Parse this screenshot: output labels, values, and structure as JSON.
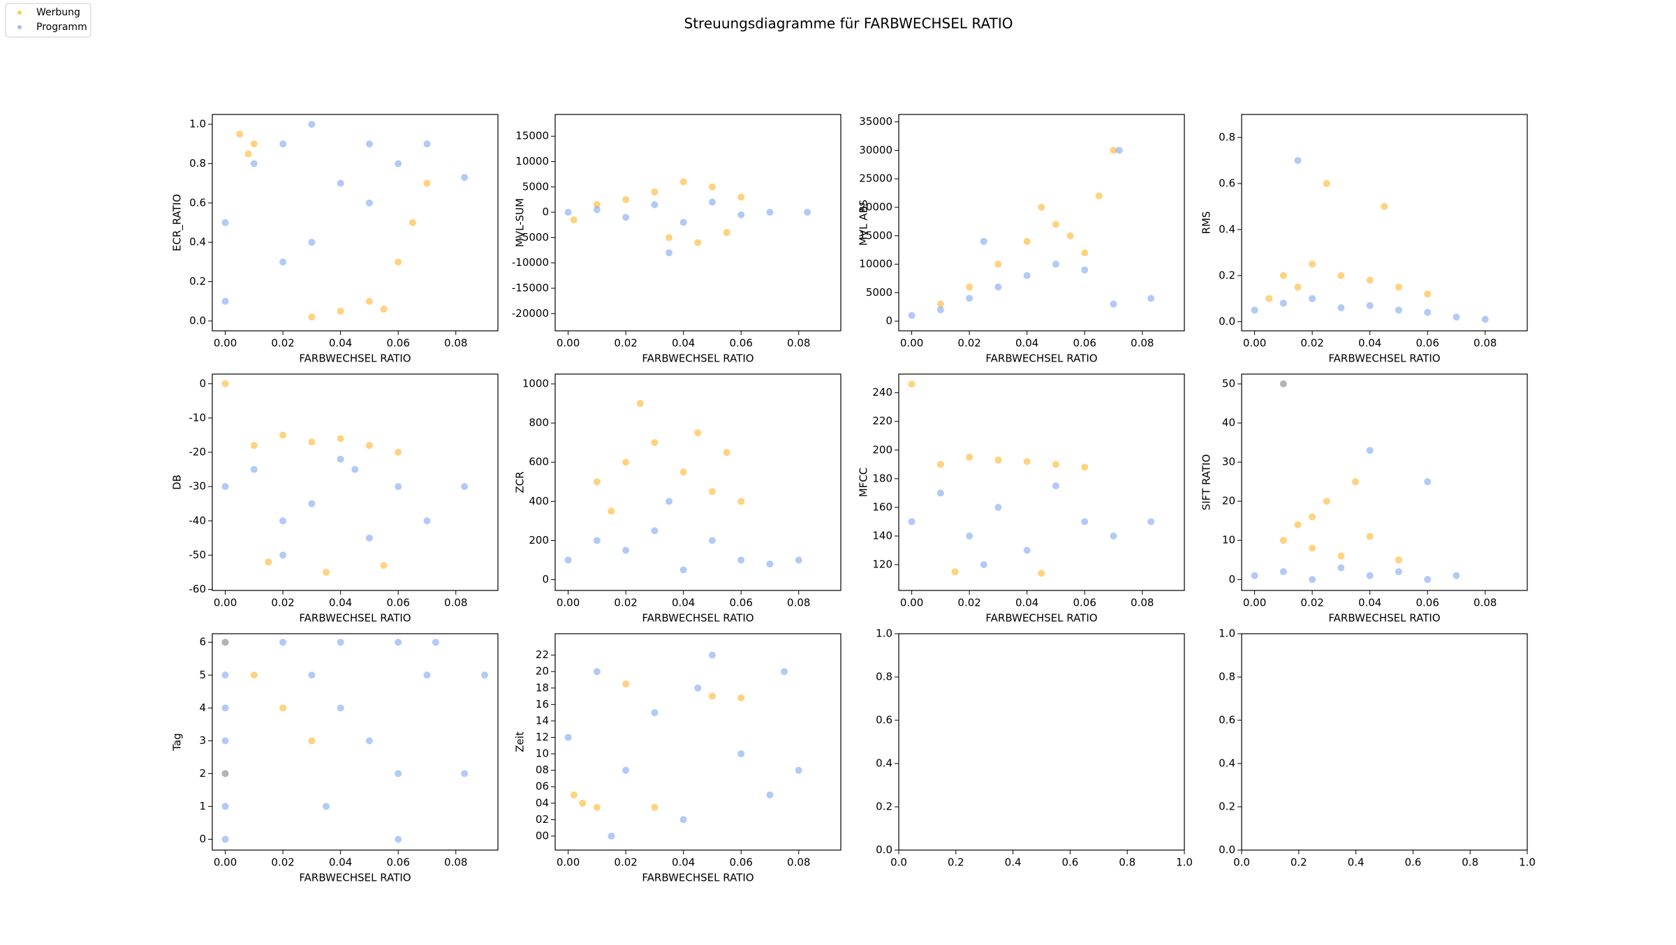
{
  "title": "Streuungsdiagramme für FARBWECHSEL RATIO",
  "chart_data": [
    {
      "type": "scatter",
      "xlabel": "FARBWECHSEL RATIO",
      "ylabel": "ECR_RATIO",
      "xlim": [
        -0.0045,
        0.0946
      ],
      "ylim": [
        -0.05,
        1.05
      ],
      "xticks": [
        {
          "value": 0,
          "label": "0.00"
        },
        {
          "value": 0.02,
          "label": "0.02"
        },
        {
          "value": 0.04,
          "label": "0.04"
        },
        {
          "value": 0.06,
          "label": "0.06"
        },
        {
          "value": 0.08,
          "label": "0.08"
        }
      ],
      "yticks": [
        {
          "value": 0,
          "label": "0.0"
        },
        0.2,
        0.4,
        0.6,
        0.8,
        {
          "value": 1,
          "label": "1.0"
        }
      ],
      "series": [
        {
          "name": "Werbung",
          "color": "#ffa500",
          "x": [
            0.005,
            0.01,
            0.008,
            0.04,
            0.05,
            0.06,
            0.065,
            0.03,
            0.055,
            0.07
          ],
          "values": [
            0.95,
            0.9,
            0.85,
            0.05,
            0.1,
            0.3,
            0.5,
            0.02,
            0.06,
            0.7
          ]
        },
        {
          "name": "Programm",
          "color": "#6495ed",
          "x": [
            0,
            0.01,
            0.02,
            0.03,
            0.04,
            0.05,
            0.06,
            0.07,
            0.03,
            0.02,
            0.05,
            0,
            0.083
          ],
          "values": [
            0.5,
            0.8,
            0.9,
            1,
            0.7,
            0.6,
            0.8,
            0.9,
            0.4,
            0.3,
            0.9,
            0.1,
            0.73
          ]
        }
      ]
    },
    {
      "type": "scatter",
      "xlabel": "FARBWECHSEL RATIO",
      "ylabel": "MVL-SUM",
      "xlim": [
        -0.0045,
        0.0946
      ],
      "ylim": [
        -23400,
        19300
      ],
      "xticks": [
        {
          "value": 0,
          "label": "0.00"
        },
        {
          "value": 0.02,
          "label": "0.02"
        },
        {
          "value": 0.04,
          "label": "0.04"
        },
        {
          "value": 0.06,
          "label": "0.06"
        },
        {
          "value": 0.08,
          "label": "0.08"
        }
      ],
      "yticks": [
        -20000,
        -15000,
        -10000,
        -5000,
        0,
        5000,
        10000,
        15000
      ],
      "series": [
        {
          "name": "Werbung",
          "color": "#ffa500",
          "x": [
            0.01,
            0.02,
            0.03,
            0.04,
            0.05,
            0.06,
            0.045,
            0.035,
            0.055,
            0.002
          ],
          "values": [
            1500,
            2500,
            4000,
            6000,
            5000,
            3000,
            -6000,
            -5000,
            -4000,
            -1500
          ]
        },
        {
          "name": "Programm",
          "color": "#6495ed",
          "x": [
            0,
            0.01,
            0.02,
            0.03,
            0.04,
            0.05,
            0.06,
            0.07,
            0.083,
            0.035
          ],
          "values": [
            0,
            500,
            -1000,
            1500,
            -2000,
            2000,
            -500,
            0,
            0,
            -8000
          ]
        }
      ]
    },
    {
      "type": "scatter",
      "xlabel": "FARBWECHSEL RATIO",
      "ylabel": "MVL ABS",
      "xlim": [
        -0.0045,
        0.0946
      ],
      "ylim": [
        -1700,
        36300
      ],
      "xticks": [
        {
          "value": 0,
          "label": "0.00"
        },
        {
          "value": 0.02,
          "label": "0.02"
        },
        {
          "value": 0.04,
          "label": "0.04"
        },
        {
          "value": 0.06,
          "label": "0.06"
        },
        {
          "value": 0.08,
          "label": "0.08"
        }
      ],
      "yticks": [
        0,
        5000,
        10000,
        15000,
        20000,
        25000,
        30000,
        35000
      ],
      "series": [
        {
          "name": "Werbung",
          "color": "#ffa500",
          "x": [
            0.01,
            0.02,
            0.03,
            0.04,
            0.045,
            0.05,
            0.055,
            0.06,
            0.065,
            0.07
          ],
          "values": [
            3000,
            6000,
            10000,
            14000,
            20000,
            17000,
            15000,
            12000,
            22000,
            30000
          ]
        },
        {
          "name": "Programm",
          "color": "#6495ed",
          "x": [
            0,
            0.01,
            0.02,
            0.025,
            0.03,
            0.04,
            0.05,
            0.06,
            0.07,
            0.083,
            0.072
          ],
          "values": [
            1000,
            2000,
            4000,
            14000,
            6000,
            8000,
            10000,
            9000,
            3000,
            4000,
            30000
          ]
        }
      ]
    },
    {
      "type": "scatter",
      "xlabel": "FARBWECHSEL RATIO",
      "ylabel": "RMS",
      "xlim": [
        -0.0045,
        0.0946
      ],
      "ylim": [
        -0.04,
        0.9
      ],
      "xticks": [
        {
          "value": 0,
          "label": "0.00"
        },
        {
          "value": 0.02,
          "label": "0.02"
        },
        {
          "value": 0.04,
          "label": "0.04"
        },
        {
          "value": 0.06,
          "label": "0.06"
        },
        {
          "value": 0.08,
          "label": "0.08"
        }
      ],
      "yticks": [
        {
          "value": 0,
          "label": "0.0"
        },
        0.2,
        0.4,
        0.6,
        0.8
      ],
      "series": [
        {
          "name": "Werbung",
          "color": "#ffa500",
          "x": [
            0.005,
            0.01,
            0.015,
            0.02,
            0.03,
            0.04,
            0.05,
            0.06,
            0.025,
            0.045
          ],
          "values": [
            0.1,
            0.2,
            0.15,
            0.25,
            0.2,
            0.18,
            0.15,
            0.12,
            0.6,
            0.5
          ]
        },
        {
          "name": "Programm",
          "color": "#6495ed",
          "x": [
            0,
            0.01,
            0.02,
            0.03,
            0.04,
            0.05,
            0.06,
            0.07,
            0.08,
            0.015
          ],
          "values": [
            0.05,
            0.08,
            0.1,
            0.06,
            0.07,
            0.05,
            0.04,
            0.02,
            0.01,
            0.7
          ]
        }
      ]
    },
    {
      "type": "scatter",
      "xlabel": "FARBWECHSEL RATIO",
      "ylabel": "DB",
      "xlim": [
        -0.0045,
        0.0946
      ],
      "ylim": [
        -60.3,
        2.8
      ],
      "xticks": [
        {
          "value": 0,
          "label": "0.00"
        },
        {
          "value": 0.02,
          "label": "0.02"
        },
        {
          "value": 0.04,
          "label": "0.04"
        },
        {
          "value": 0.06,
          "label": "0.06"
        },
        {
          "value": 0.08,
          "label": "0.08"
        }
      ],
      "yticks": [
        -60,
        -50,
        -40,
        -30,
        -20,
        -10,
        0
      ],
      "series": [
        {
          "name": "Werbung",
          "color": "#ffa500",
          "x": [
            0,
            0.01,
            0.02,
            0.03,
            0.04,
            0.05,
            0.06,
            0.015,
            0.035,
            0.055
          ],
          "values": [
            0,
            -18,
            -15,
            -17,
            -16,
            -18,
            -20,
            -52,
            -55,
            -53
          ]
        },
        {
          "name": "Programm",
          "color": "#6495ed",
          "x": [
            0,
            0.01,
            0.02,
            0.03,
            0.04,
            0.05,
            0.06,
            0.07,
            0.083,
            0.02,
            0.045
          ],
          "values": [
            -30,
            -25,
            -40,
            -35,
            -22,
            -45,
            -30,
            -40,
            -30,
            -50,
            -25
          ]
        }
      ]
    },
    {
      "type": "scatter",
      "xlabel": "FARBWECHSEL RATIO",
      "ylabel": "ZCR",
      "xlim": [
        -0.0045,
        0.0946
      ],
      "ylim": [
        -55,
        1050
      ],
      "xticks": [
        {
          "value": 0,
          "label": "0.00"
        },
        {
          "value": 0.02,
          "label": "0.02"
        },
        {
          "value": 0.04,
          "label": "0.04"
        },
        {
          "value": 0.06,
          "label": "0.06"
        },
        {
          "value": 0.08,
          "label": "0.08"
        }
      ],
      "yticks": [
        0,
        200,
        400,
        600,
        800,
        1000
      ],
      "series": [
        {
          "name": "Werbung",
          "color": "#ffa500",
          "x": [
            0.01,
            0.02,
            0.03,
            0.04,
            0.05,
            0.06,
            0.025,
            0.045,
            0.015,
            0.055
          ],
          "values": [
            500,
            600,
            700,
            550,
            450,
            400,
            900,
            750,
            350,
            650
          ]
        },
        {
          "name": "Programm",
          "color": "#6495ed",
          "x": [
            0,
            0.01,
            0.02,
            0.03,
            0.04,
            0.05,
            0.06,
            0.07,
            0.08,
            0.035
          ],
          "values": [
            100,
            200,
            150,
            250,
            50,
            200,
            100,
            80,
            100,
            400
          ]
        }
      ]
    },
    {
      "type": "scatter",
      "xlabel": "FARBWECHSEL RATIO",
      "ylabel": "MFCC",
      "xlim": [
        -0.0045,
        0.0946
      ],
      "ylim": [
        102,
        253
      ],
      "xticks": [
        {
          "value": 0,
          "label": "0.00"
        },
        {
          "value": 0.02,
          "label": "0.02"
        },
        {
          "value": 0.04,
          "label": "0.04"
        },
        {
          "value": 0.06,
          "label": "0.06"
        },
        {
          "value": 0.08,
          "label": "0.08"
        }
      ],
      "yticks": [
        120,
        140,
        160,
        180,
        200,
        220,
        240
      ],
      "series": [
        {
          "name": "Werbung",
          "color": "#ffa500",
          "x": [
            0,
            0.01,
            0.02,
            0.03,
            0.04,
            0.05,
            0.06,
            0.015,
            0.045
          ],
          "values": [
            246,
            190,
            195,
            193,
            192,
            190,
            188,
            115,
            114
          ]
        },
        {
          "name": "Programm",
          "color": "#6495ed",
          "x": [
            0,
            0.01,
            0.02,
            0.03,
            0.04,
            0.05,
            0.06,
            0.07,
            0.083,
            0.025
          ],
          "values": [
            150,
            170,
            140,
            160,
            130,
            175,
            150,
            140,
            150,
            120
          ]
        }
      ]
    },
    {
      "type": "scatter",
      "xlabel": "FARBWECHSEL RATIO",
      "ylabel": "SIFT RATIO",
      "xlim": [
        -0.0045,
        0.0946
      ],
      "ylim": [
        -2.8,
        52.5
      ],
      "xticks": [
        {
          "value": 0,
          "label": "0.00"
        },
        {
          "value": 0.02,
          "label": "0.02"
        },
        {
          "value": 0.04,
          "label": "0.04"
        },
        {
          "value": 0.06,
          "label": "0.06"
        },
        {
          "value": 0.08,
          "label": "0.08"
        }
      ],
      "yticks": [
        0,
        10,
        20,
        30,
        40,
        50
      ],
      "series": [
        {
          "name": "Werbung",
          "color": "#ffa500",
          "x": [
            0.01,
            0.015,
            0.02,
            0.03,
            0.04,
            0.05,
            0.025,
            0.035,
            0.01,
            0.02
          ],
          "values": [
            10,
            14,
            8,
            6,
            11,
            5,
            20,
            25,
            50,
            16
          ]
        },
        {
          "name": "Programm",
          "color": "#6495ed",
          "x": [
            0,
            0.01,
            0.02,
            0.03,
            0.04,
            0.05,
            0.06,
            0.07,
            0.01,
            0.04,
            0.06
          ],
          "values": [
            1,
            2,
            0,
            3,
            1,
            2,
            0,
            1,
            50,
            33,
            25
          ]
        }
      ]
    },
    {
      "type": "scatter",
      "xlabel": "FARBWECHSEL RATIO",
      "ylabel": "Tag",
      "xlim": [
        -0.0045,
        0.0946
      ],
      "ylim": [
        -0.33,
        6.26
      ],
      "xticks": [
        {
          "value": 0,
          "label": "0.00"
        },
        {
          "value": 0.02,
          "label": "0.02"
        },
        {
          "value": 0.04,
          "label": "0.04"
        },
        {
          "value": 0.06,
          "label": "0.06"
        },
        {
          "value": 0.08,
          "label": "0.08"
        }
      ],
      "yticks": [
        0,
        1,
        2,
        3,
        4,
        5,
        6
      ],
      "series": [
        {
          "name": "Werbung",
          "color": "#ffa500",
          "x": [
            0,
            0.01,
            0.02,
            0.03,
            0
          ],
          "values": [
            6,
            5,
            4,
            3,
            2
          ]
        },
        {
          "name": "Programm",
          "color": "#6495ed",
          "x": [
            0,
            0.02,
            0.04,
            0.06,
            0.073,
            0,
            0.03,
            0.07,
            0,
            0.04,
            0,
            0.05,
            0,
            0.06,
            0.083,
            0,
            0.035,
            0,
            0.06,
            0.09
          ],
          "values": [
            6,
            6,
            6,
            6,
            6,
            5,
            5,
            5,
            4,
            4,
            3,
            3,
            2,
            2,
            2,
            1,
            1,
            0,
            0,
            5
          ]
        }
      ]
    },
    {
      "type": "scatter",
      "xlabel": "FARBWECHSEL RATIO",
      "ylabel": "Zeit",
      "xlim": [
        -0.0045,
        0.0946
      ],
      "ylim": [
        -1.7,
        24.6
      ],
      "xticks": [
        {
          "value": 0,
          "label": "0.00"
        },
        {
          "value": 0.02,
          "label": "0.02"
        },
        {
          "value": 0.04,
          "label": "0.04"
        },
        {
          "value": 0.06,
          "label": "0.06"
        },
        {
          "value": 0.08,
          "label": "0.08"
        }
      ],
      "yticks": [
        {
          "value": 0,
          "label": "00"
        },
        {
          "value": 2,
          "label": "02"
        },
        {
          "value": 4,
          "label": "04"
        },
        {
          "value": 6,
          "label": "06"
        },
        {
          "value": 8,
          "label": "08"
        },
        10,
        12,
        14,
        16,
        18,
        20,
        22
      ],
      "series": [
        {
          "name": "Werbung",
          "color": "#ffa500",
          "x": [
            0.002,
            0.005,
            0.01,
            0.03,
            0.05,
            0.02,
            0.06
          ],
          "values": [
            5,
            4,
            3.5,
            3.5,
            17,
            18.5,
            16.8
          ]
        },
        {
          "name": "Programm",
          "color": "#6495ed",
          "x": [
            0,
            0.01,
            0.02,
            0.03,
            0.04,
            0.05,
            0.06,
            0.07,
            0.075,
            0.08,
            0.015,
            0.045
          ],
          "values": [
            12,
            20,
            8,
            15,
            2,
            22,
            10,
            5,
            20,
            8,
            0,
            18
          ]
        }
      ]
    },
    {
      "type": "scatter",
      "xlim": [
        0,
        1
      ],
      "ylim": [
        0,
        1
      ],
      "xticks": [
        {
          "value": 0,
          "label": "0.0"
        },
        0.2,
        0.4,
        0.6,
        0.8,
        {
          "value": 1,
          "label": "1.0"
        }
      ],
      "yticks": [
        {
          "value": 0,
          "label": "0.0"
        },
        0.2,
        0.4,
        0.6,
        0.8,
        {
          "value": 1,
          "label": "1.0"
        }
      ]
    },
    {
      "type": "scatter",
      "xlim": [
        0,
        1
      ],
      "ylim": [
        0,
        1
      ],
      "xticks": [
        {
          "value": 0,
          "label": "0.0"
        },
        0.2,
        0.4,
        0.6,
        0.8,
        {
          "value": 1,
          "label": "1.0"
        }
      ],
      "yticks": [
        {
          "value": 0,
          "label": "0.0"
        },
        0.2,
        0.4,
        0.6,
        0.8,
        {
          "value": 1,
          "label": "1.0"
        }
      ]
    }
  ]
}
